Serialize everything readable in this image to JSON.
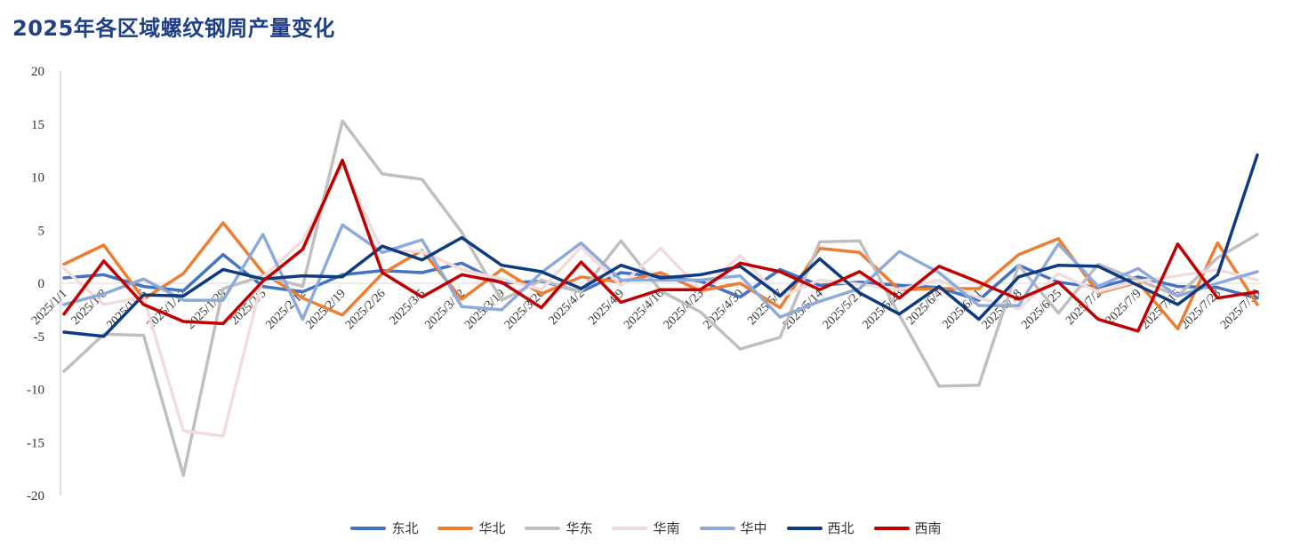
{
  "title": "2025年各区域螺纹钢周产量变化",
  "chart_data": {
    "type": "line",
    "title": "2025年各区域螺纹钢周产量变化",
    "xlabel": "",
    "ylabel": "",
    "ylim": [
      -20,
      20
    ],
    "yticks": [
      20,
      15,
      10,
      5,
      0,
      -5,
      -10,
      -15,
      -20
    ],
    "grid": false,
    "legend_position": "bottom",
    "x": [
      "2025/1/1",
      "2025/1/8",
      "2025/1/15",
      "2025/1/22",
      "2025/1/29",
      "2025/2/5",
      "2025/2/12",
      "2025/2/19",
      "2025/2/26",
      "2025/3/5",
      "2025/3/12",
      "2025/3/19",
      "2025/3/26",
      "2025/4/2",
      "2025/4/9",
      "2025/4/16",
      "2025/4/23",
      "2025/4/30",
      "2025/5/7",
      "2025/5/14",
      "2025/5/21",
      "2025/5/28",
      "2025/6/4",
      "2025/6/11",
      "2025/6/18",
      "2025/6/25",
      "2025/7/2",
      "2025/7/9",
      "2025/7/16",
      "2025/7/23",
      "2025/7/30"
    ],
    "xtick_labels": [
      "2025/1/1",
      "2025/1/8",
      "2025/1/15",
      "2025/1/22",
      "2025/1/29",
      "2025/2/5",
      "2025/2/12",
      "2025/2/19",
      "2025/2/26",
      "2025/3/5",
      "2025/3/12",
      "2025/3/19",
      "2025/3/26",
      "2025/4/2",
      "2025/4/9",
      "2025/4/16",
      "2025/4/23",
      "2025/4/30",
      "2025/5/7",
      "2025/5/14",
      "2025/5/21",
      "2025/5/28",
      "2025/6/4",
      "2025/6/11",
      "2025/6/18",
      "2025/6/25",
      "2025/7/2",
      "2025/7/9",
      "2025/7/16",
      "2025/7/23",
      "2025/7/30"
    ],
    "series": [
      {
        "name": "东北",
        "color": "#4472c4",
        "width": 3.5,
        "values": [
          0.5,
          0.8,
          -0.3,
          -0.7,
          2.7,
          -0.3,
          -0.8,
          0.8,
          1.2,
          1.0,
          1.9,
          0.0,
          0.2,
          -0.8,
          1.0,
          0.6,
          0.2,
          -1.3,
          1.3,
          -0.2,
          0.1,
          -0.2,
          -0.4,
          -1.6,
          1.7,
          0.1,
          -0.4,
          0.6,
          -0.3,
          -0.4,
          -1.4
        ]
      },
      {
        "name": "华北",
        "color": "#ed7d31",
        "width": 3.5,
        "values": [
          1.8,
          3.6,
          -1.5,
          0.9,
          5.7,
          1.0,
          -1.4,
          -3.0,
          0.9,
          3.1,
          -1.5,
          1.3,
          -1.0,
          0.6,
          0.1,
          1.0,
          -0.7,
          0.0,
          -2.3,
          3.3,
          2.9,
          -0.6,
          -0.5,
          -0.5,
          2.7,
          4.2,
          -0.9,
          0.1,
          -4.3,
          3.8,
          -2.0
        ]
      },
      {
        "name": "华东",
        "color": "#bfbfbf",
        "width": 3.5,
        "values": [
          -8.3,
          -4.8,
          -4.9,
          -18.1,
          -0.5,
          0.7,
          -0.3,
          15.3,
          10.3,
          9.8,
          4.8,
          -1.6,
          0.3,
          -0.8,
          4.0,
          -0.7,
          -2.7,
          -6.2,
          -5.1,
          3.9,
          4.0,
          -3.0,
          -9.7,
          -9.6,
          1.7,
          -2.8,
          1.8,
          0.3,
          -1.2,
          2.4,
          4.6
        ]
      },
      {
        "name": "华南",
        "color": "#f2dcdb",
        "width": 3.5,
        "values": [
          1.4,
          -2.0,
          -1.3,
          -13.9,
          -14.4,
          0.6,
          4.0,
          11.2,
          3.0,
          3.0,
          1.3,
          0.4,
          -0.6,
          3.4,
          -0.2,
          3.3,
          -0.6,
          2.6,
          -1.3,
          0.3,
          -0.1,
          -0.6,
          0.3,
          -1.4,
          -2.4,
          0.9,
          -0.8,
          0.2,
          0.7,
          1.3,
          0.3
        ]
      },
      {
        "name": "华中",
        "color": "#8eaadb",
        "width": 3.5,
        "values": [
          -2.0,
          -1.0,
          0.4,
          -1.6,
          -1.6,
          4.6,
          -3.4,
          5.5,
          2.9,
          4.1,
          -2.2,
          -2.5,
          1.0,
          3.8,
          0.3,
          0.3,
          0.3,
          0.7,
          -3.2,
          -1.7,
          -0.5,
          3.0,
          1.0,
          -2.1,
          -2.1,
          3.7,
          -0.3,
          1.4,
          -1.2,
          0.0,
          1.1
        ]
      },
      {
        "name": "西北",
        "color": "#0e3a80",
        "width": 3.5,
        "values": [
          -4.6,
          -5.0,
          -1.1,
          -1.2,
          1.3,
          0.4,
          0.7,
          0.6,
          3.5,
          2.2,
          4.3,
          1.7,
          1.1,
          -0.5,
          1.7,
          0.5,
          0.8,
          1.6,
          -1.2,
          2.3,
          -0.9,
          -2.9,
          -0.3,
          -3.4,
          0.6,
          1.7,
          1.6,
          -0.2,
          -2.0,
          0.8,
          12.1
        ]
      },
      {
        "name": "西南",
        "color": "#c00000",
        "width": 3.5,
        "values": [
          -2.9,
          2.1,
          -2.0,
          -3.6,
          -3.8,
          0.2,
          3.2,
          11.6,
          1.0,
          -1.3,
          0.8,
          0.1,
          -2.3,
          2.0,
          -1.8,
          -0.6,
          -0.6,
          1.9,
          1.1,
          -0.6,
          1.1,
          -1.4,
          1.6,
          0.1,
          -1.5,
          0.1,
          -3.4,
          -4.5,
          3.7,
          -1.4,
          -0.8
        ]
      }
    ]
  }
}
